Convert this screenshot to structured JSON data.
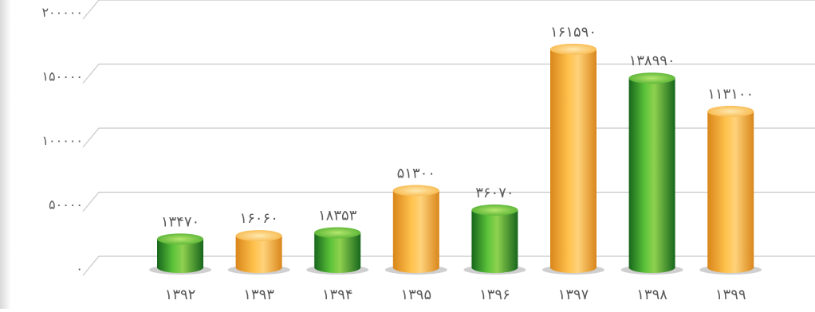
{
  "chart_data": {
    "type": "bar",
    "categories": [
      "۱۳۹۲",
      "۱۳۹۳",
      "۱۳۹۴",
      "۱۳۹۵",
      "۱۳۹۶",
      "۱۳۹۷",
      "۱۳۹۸",
      "۱۳۹۹"
    ],
    "values": [
      13470,
      16060,
      18353,
      51300,
      36070,
      161590,
      138990,
      113100
    ],
    "data_labels": [
      "۱۳۴۷۰",
      "۱۶۰۶۰",
      "۱۸۳۵۳",
      "۵۱۳۰۰",
      "۳۶۰۷۰",
      "۱۶۱۵۹۰",
      "۱۳۸۹۹۰",
      "۱۱۳۱۰۰"
    ],
    "bar_colors": [
      "green",
      "orange",
      "green",
      "orange",
      "green",
      "orange",
      "green",
      "orange"
    ],
    "y_ticks": [
      {
        "value": 0,
        "label": "۰"
      },
      {
        "value": 50000,
        "label": "۵۰۰۰۰"
      },
      {
        "value": 100000,
        "label": "۱۰۰۰۰۰"
      },
      {
        "value": 150000,
        "label": "۱۵۰۰۰۰"
      },
      {
        "value": 200000,
        "label": "۲۰۰۰۰۰"
      }
    ],
    "ylim": [
      0,
      200000
    ],
    "title": "",
    "xlabel": "",
    "ylabel": "",
    "grid": true
  },
  "colors": {
    "green_light": "#8fd14f",
    "green_mid": "#2e9a2a",
    "green_dark": "#17661c",
    "orange_light": "#ffd27a",
    "orange_mid": "#f5a623",
    "orange_dark": "#d9861a",
    "grid": "#c8c8c8",
    "text": "#5a5a5a",
    "shadow": "#cfcfcf"
  }
}
